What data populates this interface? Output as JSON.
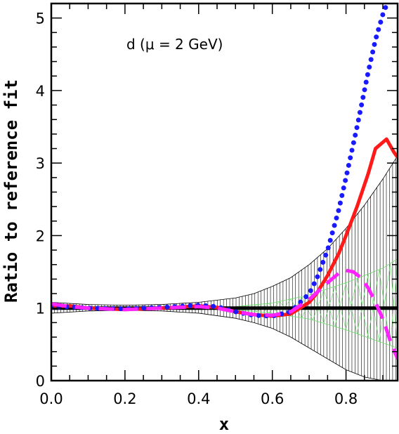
{
  "chart_data": {
    "type": "line",
    "title": "",
    "xlabel": "x",
    "ylabel": "Ratio to reference fit",
    "annotation_text": "d (μ = 2 GeV)",
    "xlim": [
      0.0,
      0.94
    ],
    "ylim": [
      0,
      5.2
    ],
    "x_ticks": [
      0.0,
      0.2,
      0.4,
      0.6,
      0.8
    ],
    "x_tick_labels": [
      "0.0",
      "0.2",
      "0.4",
      "0.6",
      "0.8"
    ],
    "y_ticks": [
      0,
      1,
      2,
      3,
      4,
      5
    ],
    "y_tick_labels": [
      "0",
      "1",
      "2",
      "3",
      "4",
      "5"
    ],
    "grid": false,
    "bands": [
      {
        "style": "black-vertical-hatch",
        "color": "#000000",
        "x": [
          0.0,
          0.1,
          0.2,
          0.3,
          0.4,
          0.5,
          0.55,
          0.6,
          0.65,
          0.7,
          0.75,
          0.8,
          0.85,
          0.9,
          0.94
        ],
        "upper": [
          1.08,
          1.05,
          1.04,
          1.05,
          1.08,
          1.14,
          1.2,
          1.3,
          1.42,
          1.6,
          1.82,
          2.1,
          2.42,
          2.78,
          3.1
        ],
        "lower": [
          0.93,
          0.96,
          0.97,
          0.96,
          0.93,
          0.86,
          0.8,
          0.72,
          0.6,
          0.45,
          0.3,
          0.15,
          0.05,
          0.0,
          0.0
        ]
      },
      {
        "style": "green-hatch",
        "color": "#66dd66",
        "x": [
          0.5,
          0.6,
          0.7,
          0.8,
          0.9,
          0.94
        ],
        "upper": [
          1.02,
          1.07,
          1.18,
          1.35,
          1.55,
          1.68
        ],
        "lower": [
          0.98,
          0.93,
          0.85,
          0.7,
          0.52,
          0.45
        ]
      }
    ],
    "series": [
      {
        "style": "solid-thick",
        "color": "#000000",
        "x": [
          0.0,
          0.94
        ],
        "values": [
          1.0,
          1.0
        ]
      },
      {
        "style": "solid",
        "color": "#ff1a1a",
        "x": [
          0.0,
          0.05,
          0.1,
          0.2,
          0.3,
          0.4,
          0.45,
          0.5,
          0.55,
          0.6,
          0.65,
          0.7,
          0.72,
          0.75,
          0.78,
          0.8,
          0.83,
          0.86,
          0.88,
          0.91,
          0.93,
          0.94
        ],
        "values": [
          1.02,
          1.03,
          1.0,
          0.98,
          1.0,
          1.03,
          1.01,
          0.95,
          0.91,
          0.89,
          0.92,
          1.08,
          1.2,
          1.45,
          1.75,
          2.0,
          2.4,
          2.85,
          3.2,
          3.33,
          3.15,
          3.08
        ]
      },
      {
        "style": "dotted",
        "color": "#1a1aff",
        "x": [
          0.0,
          0.05,
          0.1,
          0.2,
          0.3,
          0.4,
          0.45,
          0.5,
          0.55,
          0.6,
          0.65,
          0.7,
          0.72,
          0.75,
          0.78,
          0.8,
          0.83,
          0.86,
          0.88,
          0.9,
          0.91
        ],
        "values": [
          1.01,
          1.02,
          1.0,
          0.99,
          1.01,
          1.04,
          1.02,
          0.95,
          0.9,
          0.89,
          0.95,
          1.2,
          1.4,
          1.8,
          2.35,
          2.8,
          3.5,
          4.25,
          4.7,
          5.05,
          5.18
        ]
      },
      {
        "style": "dashed",
        "color": "#ff22ff",
        "x": [
          0.0,
          0.05,
          0.1,
          0.2,
          0.3,
          0.4,
          0.45,
          0.5,
          0.55,
          0.6,
          0.65,
          0.7,
          0.75,
          0.78,
          0.8,
          0.82,
          0.84,
          0.86,
          0.88,
          0.9,
          0.92,
          0.94
        ],
        "values": [
          1.06,
          1.02,
          1.0,
          0.98,
          1.0,
          1.02,
          1.0,
          0.95,
          0.91,
          0.9,
          0.95,
          1.12,
          1.35,
          1.48,
          1.52,
          1.5,
          1.42,
          1.28,
          1.08,
          0.85,
          0.55,
          0.3
        ]
      }
    ]
  }
}
